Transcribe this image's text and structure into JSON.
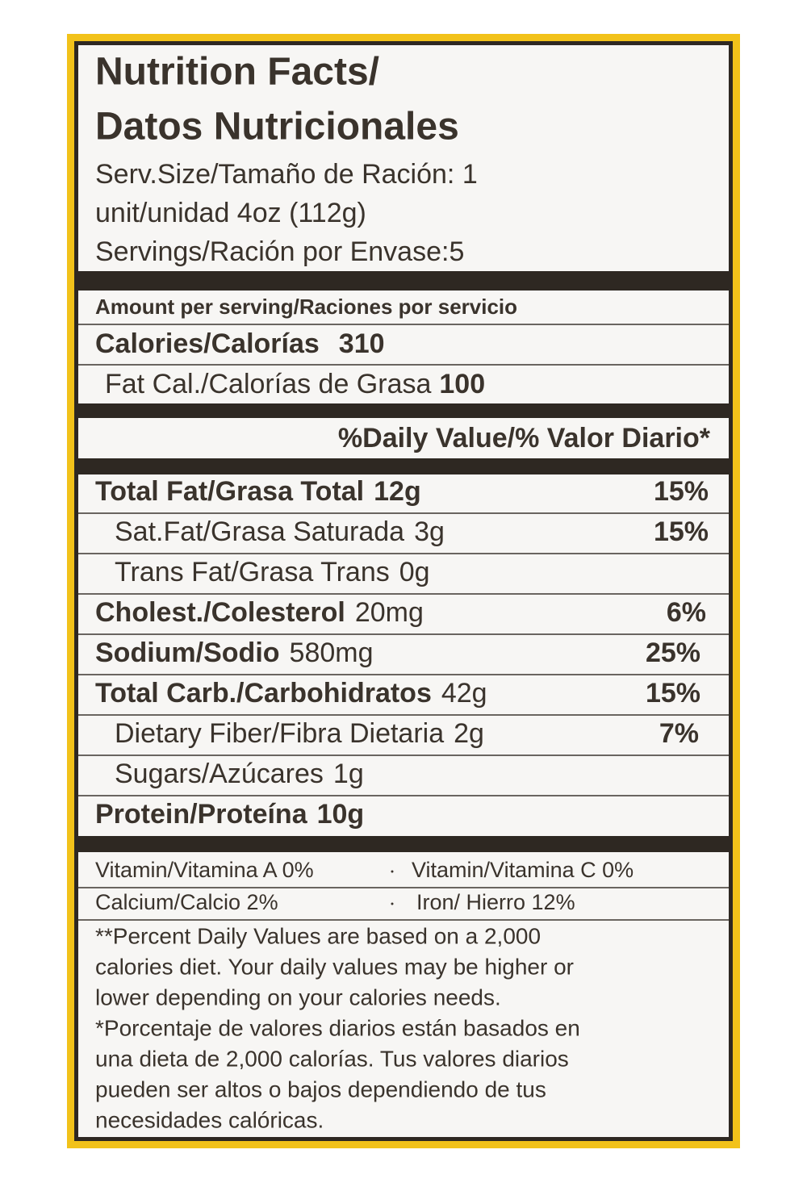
{
  "header": {
    "title_lines": [
      "Nutrition Facts/",
      "Datos Nutricionales"
    ],
    "serving_lines": [
      "Serv.Size/Tamaño de Ración: 1",
      "unit/unidad 4oz (112g)",
      "Servings/Ración por Envase:5"
    ]
  },
  "amount_per_serving": "Amount per serving/Raciones por servicio",
  "calories": {
    "label": "Calories/Calorías",
    "value": "310"
  },
  "fat_calories": {
    "label": "Fat Cal./Calorías de Grasa",
    "value": "100"
  },
  "daily_value_header": "%Daily Value/% Valor Diario*",
  "nutrients": [
    {
      "name": "Total Fat/Grasa Total",
      "amount": "12g",
      "percent": "15%"
    },
    {
      "name": "Sat.Fat/Grasa Saturada",
      "amount": "3g",
      "percent": "15%"
    },
    {
      "name": "Trans Fat/Grasa Trans",
      "amount": "0g"
    },
    {
      "name": "Cholest./Colesterol",
      "amount": "20mg",
      "percent": "6%"
    },
    {
      "name": "Sodium/Sodio",
      "amount": "580mg",
      "percent": "25%"
    },
    {
      "name": "Total Carb./Carbohidratos",
      "amount": "42g",
      "percent": "15%"
    },
    {
      "name": "Dietary Fiber/Fibra Dietaria",
      "amount": "2g",
      "percent": "7%"
    },
    {
      "name": "Sugars/Azúcares",
      "amount": "1g"
    },
    {
      "name": "Protein/Proteína",
      "amount": "10g"
    }
  ],
  "vitamins": [
    [
      "Vitamin/Vitamina A 0%",
      "Vitamin/Vitamina C 0%"
    ],
    [
      "Calcium/Calcio  2%",
      "Iron/ Hierro 12%"
    ]
  ],
  "footnote_lines": [
    "**Percent Daily Values are based on a 2,000",
    "calories diet. Your daily values may be higher or",
    "lower depending on your calories needs.",
    "*Porcentaje de valores diarios están basados en",
    "una dieta de 2,000 calorías. Tus valores diarios",
    "pueden ser altos o bajos dependiendo de tus",
    "necesidades calóricas."
  ]
}
